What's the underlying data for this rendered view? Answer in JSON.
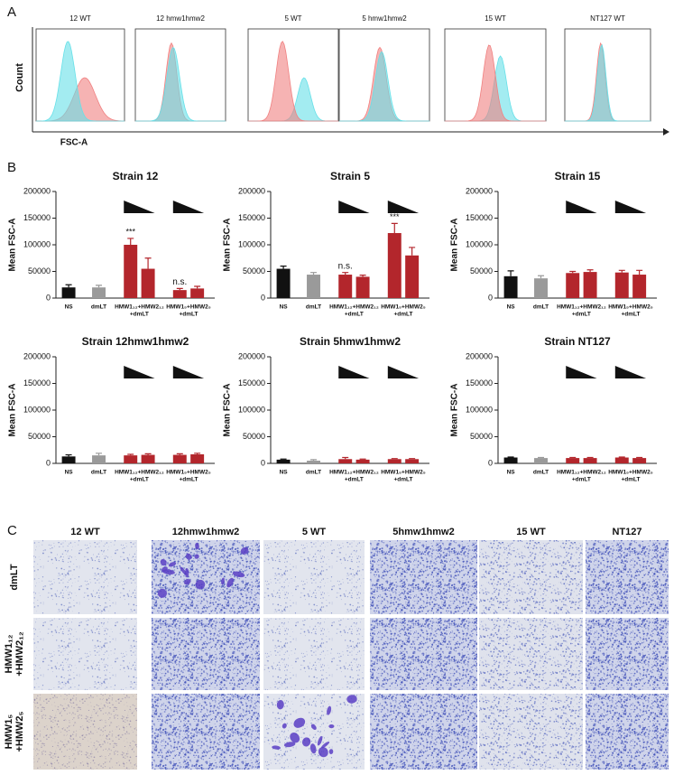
{
  "panel_labels": [
    "A",
    "B",
    "C"
  ],
  "panel_a": {
    "y_label": "Count",
    "x_label": "FSC-A",
    "titles": [
      "12 WT",
      "12 hmw1hmw2",
      "5 WT",
      "5 hmw1hmw2",
      "15 WT",
      "NT127 WT"
    ]
  },
  "chart_data": [
    {
      "type": "bar",
      "title": "Strain 12",
      "ylabel": "Mean FSC-A",
      "ylim": [
        0,
        200000
      ],
      "yticks": [
        0,
        50000,
        100000,
        150000,
        200000
      ],
      "groups": [
        {
          "label": [
            "NS"
          ],
          "color": "#111111",
          "values": [
            20000
          ],
          "errors": [
            5000
          ],
          "annotations": [
            null
          ]
        },
        {
          "label": [
            "dmLT"
          ],
          "color": "#9a9a9a",
          "values": [
            20000
          ],
          "errors": [
            4000
          ],
          "annotations": [
            null
          ]
        },
        {
          "label": [
            "HMW1₁₂+HMW2₁₂",
            "+dmLT"
          ],
          "color": "#b3262c",
          "values": [
            100000,
            55000
          ],
          "errors": [
            12000,
            20000
          ],
          "annotations": [
            "***",
            null
          ]
        },
        {
          "label": [
            "HMW1₅+HMW2₅",
            "+dmLT"
          ],
          "color": "#b3262c",
          "values": [
            15000,
            18000
          ],
          "errors": [
            3000,
            4000
          ],
          "annotations": [
            "n.s.",
            null
          ]
        }
      ]
    },
    {
      "type": "bar",
      "title": "Strain 5",
      "ylabel": "Mean FSC-A",
      "ylim": [
        0,
        200000
      ],
      "yticks": [
        0,
        50000,
        100000,
        150000,
        200000
      ],
      "groups": [
        {
          "label": [
            "NS"
          ],
          "color": "#111111",
          "values": [
            55000
          ],
          "errors": [
            5000
          ],
          "annotations": [
            null
          ]
        },
        {
          "label": [
            "dmLT"
          ],
          "color": "#9a9a9a",
          "values": [
            44000
          ],
          "errors": [
            4000
          ],
          "annotations": [
            null
          ]
        },
        {
          "label": [
            "HMW1₁₂+HMW2₁₂",
            "+dmLT"
          ],
          "color": "#b3262c",
          "values": [
            44000,
            40000
          ],
          "errors": [
            4000,
            3000
          ],
          "annotations": [
            "n.s.",
            null
          ]
        },
        {
          "label": [
            "HMW1₅+HMW2₅",
            "+dmLT"
          ],
          "color": "#b3262c",
          "values": [
            122000,
            80000
          ],
          "errors": [
            18000,
            15000
          ],
          "annotations": [
            "***",
            null
          ]
        }
      ]
    },
    {
      "type": "bar",
      "title": "Strain 15",
      "ylabel": "Mean FSC-A",
      "ylim": [
        0,
        200000
      ],
      "yticks": [
        0,
        50000,
        100000,
        150000,
        200000
      ],
      "groups": [
        {
          "label": [
            "NS"
          ],
          "color": "#111111",
          "values": [
            41000
          ],
          "errors": [
            10000
          ],
          "annotations": [
            null
          ]
        },
        {
          "label": [
            "dmLT"
          ],
          "color": "#9a9a9a",
          "values": [
            37000
          ],
          "errors": [
            5000
          ],
          "annotations": [
            null
          ]
        },
        {
          "label": [
            "HMW1₁₂+HMW2₁₂",
            "+dmLT"
          ],
          "color": "#b3262c",
          "values": [
            47000,
            49000
          ],
          "errors": [
            3000,
            4000
          ],
          "annotations": [
            null,
            null
          ]
        },
        {
          "label": [
            "HMW1₅+HMW2₅",
            "+dmLT"
          ],
          "color": "#b3262c",
          "values": [
            48000,
            44000
          ],
          "errors": [
            4000,
            8000
          ],
          "annotations": [
            null,
            null
          ]
        }
      ]
    },
    {
      "type": "bar",
      "title": "Strain 12hmw1hmw2",
      "ylabel": "Mean FSC-A",
      "ylim": [
        0,
        200000
      ],
      "yticks": [
        0,
        50000,
        100000,
        150000,
        200000
      ],
      "groups": [
        {
          "label": [
            "NS"
          ],
          "color": "#111111",
          "values": [
            13000
          ],
          "errors": [
            3000
          ],
          "annotations": [
            null
          ]
        },
        {
          "label": [
            "dmLT"
          ],
          "color": "#9a9a9a",
          "values": [
            15000
          ],
          "errors": [
            4000
          ],
          "annotations": [
            null
          ]
        },
        {
          "label": [
            "HMW1₁₂+HMW2₁₂",
            "+dmLT"
          ],
          "color": "#b3262c",
          "values": [
            15000,
            16000
          ],
          "errors": [
            2000,
            2000
          ],
          "annotations": [
            null,
            null
          ]
        },
        {
          "label": [
            "HMW1₅+HMW2₅",
            "+dmLT"
          ],
          "color": "#b3262c",
          "values": [
            16000,
            17000
          ],
          "errors": [
            2000,
            2000
          ],
          "annotations": [
            null,
            null
          ]
        }
      ]
    },
    {
      "type": "bar",
      "title": "Strain 5hmw1hmw2",
      "ylabel": "Mean FSC-A",
      "ylim": [
        0,
        200000
      ],
      "yticks": [
        0,
        50000,
        100000,
        150000,
        200000
      ],
      "groups": [
        {
          "label": [
            "NS"
          ],
          "color": "#111111",
          "values": [
            7000
          ],
          "errors": [
            1000
          ],
          "annotations": [
            null
          ]
        },
        {
          "label": [
            "dmLT"
          ],
          "color": "#9a9a9a",
          "values": [
            5000
          ],
          "errors": [
            2000
          ],
          "annotations": [
            null
          ]
        },
        {
          "label": [
            "HMW1₁₂+HMW2₁₂",
            "+dmLT"
          ],
          "color": "#b3262c",
          "values": [
            8000,
            7000
          ],
          "errors": [
            3000,
            1000
          ],
          "annotations": [
            null,
            null
          ]
        },
        {
          "label": [
            "HMW1₅+HMW2₅",
            "+dmLT"
          ],
          "color": "#b3262c",
          "values": [
            8000,
            8000
          ],
          "errors": [
            1000,
            1000
          ],
          "annotations": [
            null,
            null
          ]
        }
      ]
    },
    {
      "type": "bar",
      "title": "Strain NT127",
      "ylabel": "Mean FSC-A",
      "ylim": [
        0,
        200000
      ],
      "yticks": [
        0,
        50000,
        100000,
        150000,
        200000
      ],
      "groups": [
        {
          "label": [
            "NS"
          ],
          "color": "#111111",
          "values": [
            11000
          ],
          "errors": [
            1000
          ],
          "annotations": [
            null
          ]
        },
        {
          "label": [
            "dmLT"
          ],
          "color": "#9a9a9a",
          "values": [
            10000
          ],
          "errors": [
            1000
          ],
          "annotations": [
            null
          ]
        },
        {
          "label": [
            "HMW1₁₂+HMW2₁₂",
            "+dmLT"
          ],
          "color": "#b3262c",
          "values": [
            10000,
            10000
          ],
          "errors": [
            1000,
            1000
          ],
          "annotations": [
            null,
            null
          ]
        },
        {
          "label": [
            "HMW1₅+HMW2₅",
            "+dmLT"
          ],
          "color": "#b3262c",
          "values": [
            11000,
            10000
          ],
          "errors": [
            1000,
            1000
          ],
          "annotations": [
            null,
            null
          ]
        }
      ]
    }
  ],
  "panel_c": {
    "columns": [
      "12 WT",
      "12hmw1hmw2",
      "5 WT",
      "5hmw1hmw2",
      "15 WT",
      "NT127"
    ],
    "rows": [
      [
        "dmLT"
      ],
      [
        "HMW1₁₂",
        "+HMW2₁₂"
      ],
      [
        "HMW1₅",
        "+HMW2₅"
      ]
    ]
  }
}
